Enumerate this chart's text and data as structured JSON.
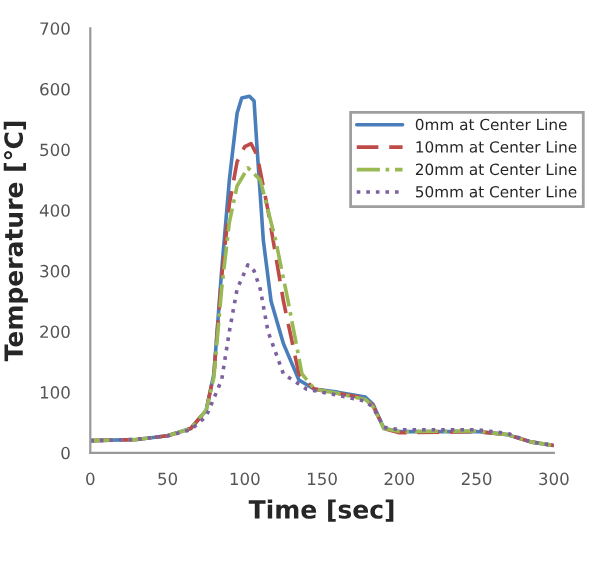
{
  "chart_data": {
    "type": "line",
    "xlabel": "Time [sec]",
    "ylabel": "Temperature [℃]",
    "xlim": [
      0,
      300
    ],
    "ylim": [
      0,
      700
    ],
    "xticks": [
      0,
      50,
      100,
      150,
      200,
      250,
      300
    ],
    "yticks": [
      0,
      100,
      200,
      300,
      400,
      500,
      600,
      700
    ],
    "grid": false,
    "legend": "top right",
    "marker": "none",
    "series": [
      {
        "name": "0mm at Center Line",
        "color": "#4a7ebb",
        "line_style": "solid",
        "x": [
          0,
          30,
          50,
          65,
          75,
          80,
          85,
          90,
          95,
          98,
          103,
          106,
          108,
          112,
          117,
          125,
          135,
          145,
          160,
          178,
          183,
          190,
          200,
          250,
          270,
          285,
          300
        ],
        "values": [
          20,
          22,
          28,
          40,
          70,
          130,
          300,
          450,
          560,
          585,
          588,
          580,
          500,
          350,
          250,
          180,
          120,
          105,
          100,
          92,
          80,
          40,
          35,
          35,
          30,
          18,
          12
        ]
      },
      {
        "name": "10mm at Center Line",
        "color": "#be4b48",
        "line_style": "dashed",
        "x": [
          0,
          30,
          50,
          65,
          75,
          80,
          85,
          90,
          95,
          100,
          104,
          108,
          115,
          125,
          135,
          145,
          160,
          178,
          183,
          190,
          200,
          250,
          270,
          285,
          300
        ],
        "values": [
          20,
          22,
          28,
          40,
          70,
          130,
          290,
          410,
          480,
          505,
          510,
          490,
          400,
          250,
          130,
          105,
          98,
          90,
          78,
          40,
          33,
          35,
          30,
          18,
          12
        ]
      },
      {
        "name": "20mm at Center Line",
        "color": "#98b954",
        "line_style": "dashdot",
        "x": [
          0,
          30,
          50,
          65,
          75,
          80,
          85,
          90,
          95,
          102,
          110,
          120,
          128,
          137,
          145,
          160,
          178,
          183,
          190,
          200,
          250,
          270,
          285,
          300
        ],
        "values": [
          20,
          22,
          28,
          40,
          70,
          125,
          270,
          380,
          440,
          470,
          450,
          350,
          250,
          130,
          105,
          98,
          88,
          76,
          40,
          35,
          36,
          30,
          18,
          12
        ]
      },
      {
        "name": "50mm at Center Line",
        "color": "#7d60a0",
        "line_style": "dotted",
        "x": [
          0,
          30,
          50,
          65,
          75,
          80,
          85,
          90,
          95,
          102,
          106,
          110,
          115,
          125,
          140,
          160,
          178,
          183,
          190,
          200,
          250,
          270,
          285,
          300
        ],
        "values": [
          20,
          22,
          28,
          38,
          60,
          90,
          120,
          200,
          270,
          310,
          300,
          270,
          200,
          130,
          105,
          95,
          85,
          75,
          42,
          38,
          38,
          32,
          18,
          12
        ]
      }
    ]
  }
}
